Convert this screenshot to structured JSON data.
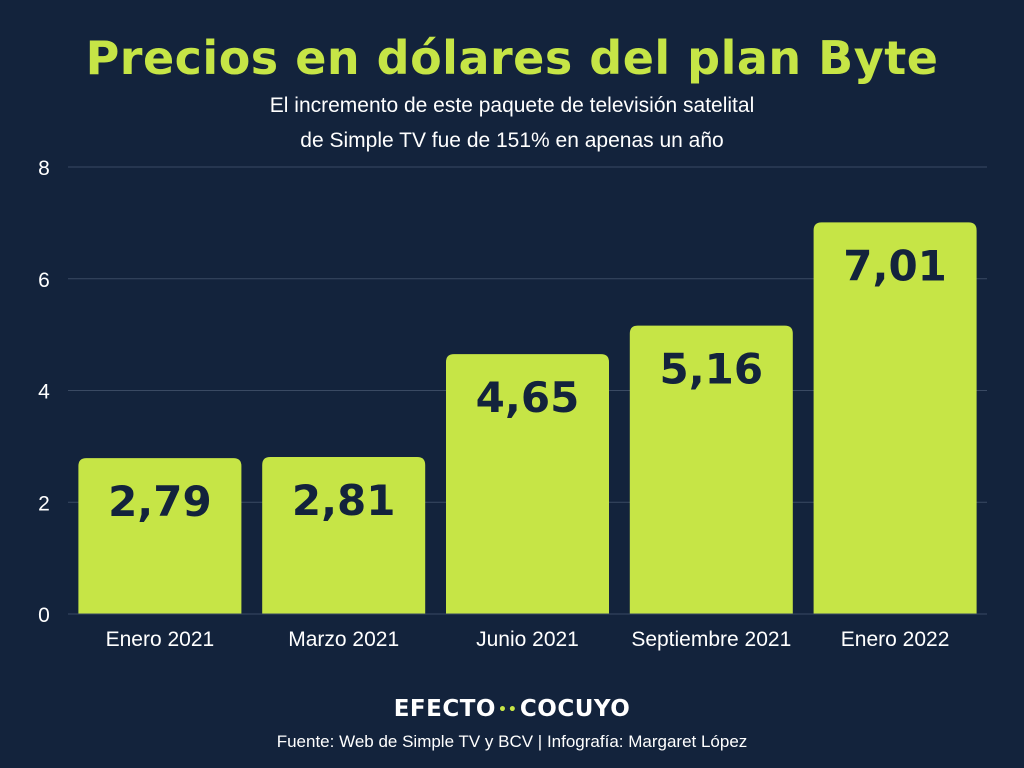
{
  "chart_data": {
    "type": "bar",
    "title": "Precios en dólares del plan Byte",
    "subtitle_lines": [
      "El incremento de este paquete de televisión satelital",
      "de Simple TV fue de 151% en apenas un año"
    ],
    "categories": [
      "Enero 2021",
      "Marzo 2021",
      "Junio 2021",
      "Septiembre 2021",
      "Enero 2022"
    ],
    "values": [
      2.79,
      2.81,
      4.65,
      5.16,
      7.01
    ],
    "data_labels": [
      "2,79",
      "2,81",
      "4,65",
      "5,16",
      "7,01"
    ],
    "xlabel": "",
    "ylabel": "",
    "ylim": [
      0,
      8
    ],
    "yticks": [
      0,
      2,
      4,
      6,
      8
    ],
    "grid": true,
    "legend": "none"
  },
  "branding": {
    "logo_left": "EFECTO",
    "logo_right": "COCUYO"
  },
  "source_text": "Fuente: Web de Simple TV y BCV | Infografía: Margaret López",
  "colors": {
    "background": "#13233c",
    "accent": "#c6e546",
    "text": "#ffffff",
    "bar_label": "#13233c",
    "grid": "#3a4a63"
  }
}
